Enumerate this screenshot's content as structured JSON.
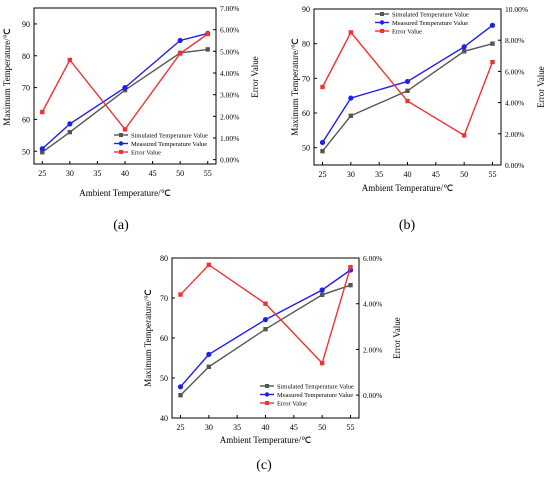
{
  "colors": {
    "simulated": "#555555",
    "measured": "#1f1fe8",
    "error": "#ee3333",
    "axis": "#000000"
  },
  "chart_data": [
    {
      "type": "line",
      "panel_label": "(a)",
      "xlabel": "Ambient Temperature/℃",
      "ylabel_left": "Maximum Temperature/℃",
      "ylabel_right": "Error Value",
      "x": [
        25,
        30,
        40,
        50,
        55
      ],
      "xticks": [
        "25",
        "30",
        "35",
        "40",
        "45",
        "50",
        "55"
      ],
      "xlim": [
        23.5,
        56.5
      ],
      "ylim_left": [
        46,
        95
      ],
      "yticks_left": [
        "50",
        "60",
        "70",
        "80",
        "90"
      ],
      "ylim_right": [
        -0.2,
        7.0
      ],
      "yticks_right": [
        "0.00%",
        "1.00%",
        "2.00%",
        "3.00%",
        "4.00%",
        "5.00%",
        "6.00%",
        "7.00%"
      ],
      "legend_placement": "bottom-right",
      "series": [
        {
          "name": "Simulated Temperature Value",
          "axis": "left",
          "values": [
            49.7,
            56.0,
            69.2,
            80.9,
            82.0
          ]
        },
        {
          "name": "Measured Temperature Value",
          "axis": "left",
          "values": [
            50.8,
            58.6,
            70.0,
            84.8,
            87.0
          ]
        },
        {
          "name": "Error Value",
          "axis": "right",
          "values": [
            2.2,
            4.6,
            1.4,
            4.9,
            5.8
          ]
        }
      ]
    },
    {
      "type": "line",
      "panel_label": "(b)",
      "xlabel": "Ambient Temperature/℃",
      "ylabel_left": "Maximum Temperature/℃",
      "ylabel_right": "Error Value",
      "x": [
        25,
        30,
        40,
        50,
        55
      ],
      "xticks": [
        "25",
        "30",
        "35",
        "40",
        "45",
        "50",
        "55"
      ],
      "xlim": [
        23.5,
        56.5
      ],
      "ylim_left": [
        45,
        90
      ],
      "yticks_left": [
        "50",
        "60",
        "70",
        "80",
        "90"
      ],
      "ylim_right": [
        0,
        10
      ],
      "yticks_right": [
        "0.00%",
        "2.00%",
        "4.00%",
        "6.00%",
        "8.00%",
        "10.00%"
      ],
      "legend_placement": "top-right",
      "series": [
        {
          "name": "Simulated Temperature Value",
          "axis": "left",
          "values": [
            49.0,
            59.2,
            66.4,
            77.8,
            80.0
          ]
        },
        {
          "name": "Measured Temperature Value",
          "axis": "left",
          "values": [
            51.5,
            64.3,
            69.1,
            79.1,
            85.3
          ]
        },
        {
          "name": "Error Value",
          "axis": "right",
          "values": [
            5.0,
            8.5,
            4.1,
            1.9,
            6.6
          ]
        }
      ]
    },
    {
      "type": "line",
      "panel_label": "(c)",
      "xlabel": "Ambient Temperature/℃",
      "ylabel_left": "Maximum Temperature/℃",
      "ylabel_right": "Error Value",
      "x": [
        25,
        30,
        40,
        50,
        55
      ],
      "xticks": [
        "25",
        "30",
        "35",
        "40",
        "45",
        "50",
        "55"
      ],
      "xlim": [
        23.5,
        56.5
      ],
      "ylim_left": [
        40,
        80
      ],
      "yticks_left": [
        "40",
        "50",
        "60",
        "70",
        "80"
      ],
      "ylim_right": [
        -1.0,
        6.0
      ],
      "yticks_right": [
        "0.00%",
        "2.00%",
        "4.00%",
        "6.00%"
      ],
      "legend_placement": "bottom-right",
      "series": [
        {
          "name": "Simulated Temperature Value",
          "axis": "left",
          "values": [
            45.7,
            52.8,
            62.2,
            70.8,
            73.2
          ]
        },
        {
          "name": "Measured Temperature Value",
          "axis": "left",
          "values": [
            47.8,
            55.9,
            64.6,
            72.0,
            77.0
          ]
        },
        {
          "name": "Error Value",
          "axis": "right",
          "values": [
            4.4,
            5.7,
            4.0,
            1.4,
            5.6
          ]
        }
      ]
    }
  ]
}
